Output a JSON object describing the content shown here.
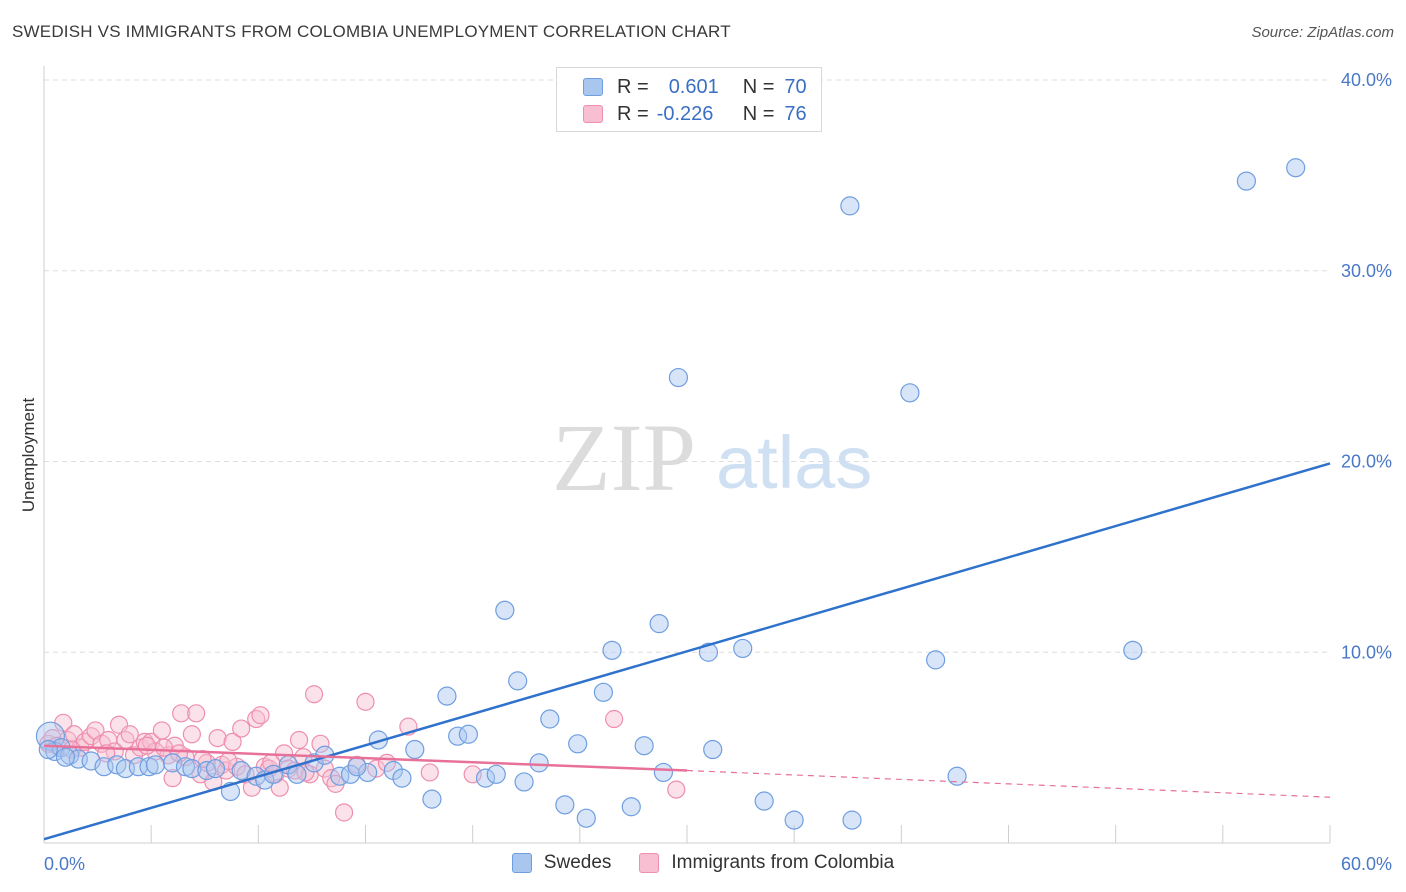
{
  "header": {
    "title": "SWEDISH VS IMMIGRANTS FROM COLOMBIA UNEMPLOYMENT CORRELATION CHART",
    "source": "Source: ZipAtlas.com"
  },
  "watermark": {
    "zip": "ZIP",
    "atlas": "atlas"
  },
  "legend": {
    "rows": [
      {
        "r_label": "R =",
        "r_value": "0.601",
        "n_label": "N =",
        "n_value": "70"
      },
      {
        "r_label": "R =",
        "r_value": "-0.226",
        "n_label": "N =",
        "n_value": "76"
      }
    ]
  },
  "colors": {
    "swedes_fill": "#a9c6ef",
    "swedes_stroke": "#6f9ee0",
    "swedes_line": "#2f72cc",
    "colombia_fill": "#f7bfd1",
    "colombia_stroke": "#ee8fb0",
    "colombia_line": "#e8719a",
    "axis_text": "#4a78c8",
    "grid": "#dedede"
  },
  "chart_data": {
    "type": "scatter",
    "title": "SWEDISH VS IMMIGRANTS FROM COLOMBIA UNEMPLOYMENT CORRELATION CHART",
    "xlabel": "",
    "ylabel": "Unemployment",
    "xlim": [
      0,
      60
    ],
    "ylim": [
      0,
      40
    ],
    "x_tick_labels": [
      "0.0%",
      "60.0%"
    ],
    "y_ticks": [
      10,
      20,
      30,
      40
    ],
    "y_tick_labels": [
      "10.0%",
      "20.0%",
      "30.0%",
      "40.0%"
    ],
    "grid": true,
    "legend_position": "bottom",
    "series": [
      {
        "name": "Swedes",
        "r": 0.601,
        "n": 70,
        "trend": {
          "x": [
            0,
            60
          ],
          "y": [
            0.2,
            19.9
          ]
        },
        "points": [
          [
            0.3,
            5.6
          ],
          [
            0.5,
            4.8
          ],
          [
            0.8,
            5.0
          ],
          [
            1.2,
            4.6
          ],
          [
            1.6,
            4.4
          ],
          [
            2.2,
            4.3
          ],
          [
            2.8,
            4.0
          ],
          [
            3.4,
            4.1
          ],
          [
            3.8,
            3.9
          ],
          [
            4.4,
            4.0
          ],
          [
            4.9,
            4.0
          ],
          [
            5.2,
            4.1
          ],
          [
            6.0,
            4.2
          ],
          [
            6.6,
            4.0
          ],
          [
            6.9,
            3.9
          ],
          [
            7.6,
            3.8
          ],
          [
            8.0,
            3.9
          ],
          [
            8.7,
            2.7
          ],
          [
            9.2,
            3.8
          ],
          [
            9.9,
            3.5
          ],
          [
            10.3,
            3.3
          ],
          [
            10.7,
            3.6
          ],
          [
            11.4,
            4.1
          ],
          [
            11.8,
            3.6
          ],
          [
            12.6,
            4.2
          ],
          [
            13.1,
            4.6
          ],
          [
            13.8,
            3.5
          ],
          [
            14.3,
            3.6
          ],
          [
            15.1,
            3.7
          ],
          [
            15.6,
            5.4
          ],
          [
            16.3,
            3.8
          ],
          [
            16.7,
            3.4
          ],
          [
            17.3,
            4.9
          ],
          [
            18.1,
            2.3
          ],
          [
            18.8,
            7.7
          ],
          [
            19.3,
            5.6
          ],
          [
            19.8,
            5.7
          ],
          [
            20.6,
            3.4
          ],
          [
            21.1,
            3.6
          ],
          [
            21.5,
            12.2
          ],
          [
            22.1,
            8.5
          ],
          [
            22.4,
            3.2
          ],
          [
            23.1,
            4.2
          ],
          [
            23.6,
            6.5
          ],
          [
            24.3,
            2.0
          ],
          [
            24.9,
            5.2
          ],
          [
            25.3,
            1.3
          ],
          [
            26.1,
            7.9
          ],
          [
            26.5,
            10.1
          ],
          [
            27.4,
            1.9
          ],
          [
            28.0,
            5.1
          ],
          [
            28.7,
            11.5
          ],
          [
            28.9,
            3.7
          ],
          [
            29.6,
            24.4
          ],
          [
            31.0,
            10.0
          ],
          [
            31.2,
            4.9
          ],
          [
            32.6,
            10.2
          ],
          [
            33.6,
            2.2
          ],
          [
            35.0,
            1.2
          ],
          [
            37.6,
            33.4
          ],
          [
            37.7,
            1.2
          ],
          [
            40.4,
            23.6
          ],
          [
            41.6,
            9.6
          ],
          [
            42.6,
            3.5
          ],
          [
            50.8,
            10.1
          ],
          [
            56.1,
            34.7
          ],
          [
            58.4,
            35.4
          ],
          [
            0.2,
            4.9
          ],
          [
            1.0,
            4.5
          ],
          [
            14.6,
            4.0
          ]
        ]
      },
      {
        "name": "Immigrants from Colombia",
        "r": -0.226,
        "n": 76,
        "trend": {
          "x": [
            0,
            30
          ],
          "y": [
            5.1,
            3.8
          ]
        },
        "trend_dashed": {
          "x": [
            30,
            60
          ],
          "y": [
            3.8,
            2.4
          ]
        },
        "points": [
          [
            0.2,
            5.2
          ],
          [
            0.4,
            5.5
          ],
          [
            0.6,
            5.1
          ],
          [
            0.9,
            6.3
          ],
          [
            1.1,
            5.4
          ],
          [
            1.4,
            5.7
          ],
          [
            1.7,
            5.0
          ],
          [
            1.9,
            5.3
          ],
          [
            2.2,
            5.6
          ],
          [
            2.4,
            5.9
          ],
          [
            2.7,
            5.2
          ],
          [
            3.0,
            5.4
          ],
          [
            3.3,
            4.8
          ],
          [
            3.5,
            6.2
          ],
          [
            3.8,
            5.4
          ],
          [
            4.0,
            5.7
          ],
          [
            4.2,
            4.6
          ],
          [
            4.5,
            5.0
          ],
          [
            4.7,
            5.3
          ],
          [
            5.0,
            5.3
          ],
          [
            5.2,
            4.8
          ],
          [
            5.5,
            5.9
          ],
          [
            5.8,
            4.6
          ],
          [
            6.0,
            3.4
          ],
          [
            6.1,
            5.1
          ],
          [
            6.4,
            6.8
          ],
          [
            6.6,
            4.5
          ],
          [
            6.9,
            5.7
          ],
          [
            7.1,
            6.8
          ],
          [
            7.3,
            3.6
          ],
          [
            7.6,
            4.2
          ],
          [
            7.9,
            3.2
          ],
          [
            8.1,
            5.5
          ],
          [
            8.3,
            4.1
          ],
          [
            8.5,
            3.8
          ],
          [
            8.8,
            5.3
          ],
          [
            9.0,
            4.0
          ],
          [
            9.2,
            6.0
          ],
          [
            9.4,
            3.6
          ],
          [
            9.7,
            2.9
          ],
          [
            9.9,
            6.5
          ],
          [
            10.1,
            6.7
          ],
          [
            10.3,
            4.0
          ],
          [
            10.5,
            3.9
          ],
          [
            10.8,
            3.6
          ],
          [
            11.0,
            2.9
          ],
          [
            11.2,
            4.7
          ],
          [
            11.4,
            3.9
          ],
          [
            11.7,
            3.8
          ],
          [
            11.9,
            5.4
          ],
          [
            12.1,
            4.5
          ],
          [
            12.4,
            3.6
          ],
          [
            12.6,
            7.8
          ],
          [
            12.9,
            5.2
          ],
          [
            13.1,
            3.9
          ],
          [
            13.4,
            3.4
          ],
          [
            13.6,
            3.1
          ],
          [
            14.0,
            1.6
          ],
          [
            14.6,
            4.1
          ],
          [
            15.0,
            7.4
          ],
          [
            15.5,
            3.9
          ],
          [
            16.0,
            4.2
          ],
          [
            17.0,
            6.1
          ],
          [
            18.0,
            3.7
          ],
          [
            20.0,
            3.6
          ],
          [
            26.6,
            6.5
          ],
          [
            29.5,
            2.8
          ],
          [
            1.3,
            4.9
          ],
          [
            2.9,
            4.7
          ],
          [
            4.8,
            5.1
          ],
          [
            5.6,
            5.0
          ],
          [
            6.3,
            4.7
          ],
          [
            7.4,
            4.4
          ],
          [
            8.6,
            4.3
          ],
          [
            10.6,
            4.2
          ],
          [
            12.2,
            3.7
          ]
        ]
      }
    ]
  },
  "bottom_legend": {
    "items": [
      "Swedes",
      "Immigrants from Colombia"
    ]
  }
}
